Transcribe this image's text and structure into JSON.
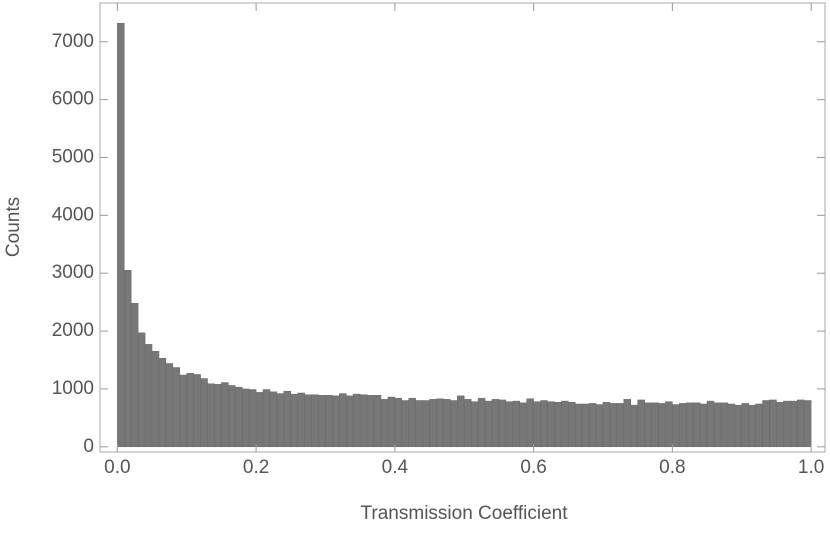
{
  "chart_data": {
    "type": "histogram",
    "xlabel": "Transmission Coefficient",
    "ylabel": "Counts",
    "color": "#777777",
    "bins": [
      0,
      0.01,
      0.02,
      0.03,
      0.04,
      0.05,
      0.06,
      0.07,
      0.08,
      0.09,
      0.1,
      0.11,
      0.12,
      0.13,
      0.14,
      0.15,
      0.16,
      0.17,
      0.18,
      0.19,
      0.2,
      0.21,
      0.22,
      0.23,
      0.24,
      0.25,
      0.26,
      0.27,
      0.28,
      0.29,
      0.3,
      0.31,
      0.32,
      0.33,
      0.34,
      0.35,
      0.36,
      0.37,
      0.38,
      0.39,
      0.4,
      0.41,
      0.42,
      0.43,
      0.44,
      0.45,
      0.46,
      0.47,
      0.48,
      0.49,
      0.5,
      0.51,
      0.52,
      0.53,
      0.54,
      0.55,
      0.56,
      0.57,
      0.58,
      0.59,
      0.6,
      0.61,
      0.62,
      0.63,
      0.64,
      0.65,
      0.66,
      0.67,
      0.68,
      0.69,
      0.7,
      0.71,
      0.72,
      0.73,
      0.74,
      0.75,
      0.76,
      0.77,
      0.78,
      0.79,
      0.8,
      0.81,
      0.82,
      0.83,
      0.84,
      0.85,
      0.86,
      0.87,
      0.88,
      0.89,
      0.9,
      0.91,
      0.92,
      0.93,
      0.94,
      0.95,
      0.96,
      0.97,
      0.98,
      0.99,
      1
    ],
    "values": [
      7320,
      3050,
      2480,
      1970,
      1770,
      1650,
      1530,
      1440,
      1370,
      1240,
      1270,
      1250,
      1180,
      1090,
      1080,
      1110,
      1060,
      1030,
      1000,
      990,
      940,
      990,
      950,
      920,
      960,
      910,
      930,
      900,
      900,
      890,
      890,
      880,
      920,
      880,
      910,
      900,
      890,
      890,
      820,
      860,
      840,
      800,
      840,
      800,
      800,
      820,
      830,
      820,
      800,
      880,
      820,
      780,
      840,
      790,
      820,
      810,
      780,
      790,
      760,
      830,
      780,
      800,
      780,
      770,
      790,
      770,
      740,
      740,
      750,
      730,
      770,
      750,
      750,
      820,
      720,
      810,
      760,
      760,
      750,
      780,
      730,
      750,
      760,
      760,
      740,
      790,
      760,
      760,
      740,
      720,
      750,
      720,
      740,
      800,
      810,
      770,
      790,
      790,
      810,
      800
    ],
    "xlim": [
      -0.025,
      1.02
    ],
    "ylim": [
      -90,
      7670
    ],
    "xticks": [
      {
        "value": 0,
        "label": "0.0"
      },
      0.2,
      0.4,
      0.6,
      0.8,
      {
        "value": 1,
        "label": "1.0"
      }
    ],
    "yticks": [
      0,
      1000,
      2000,
      3000,
      4000,
      5000,
      6000,
      7000
    ],
    "grid": false
  }
}
